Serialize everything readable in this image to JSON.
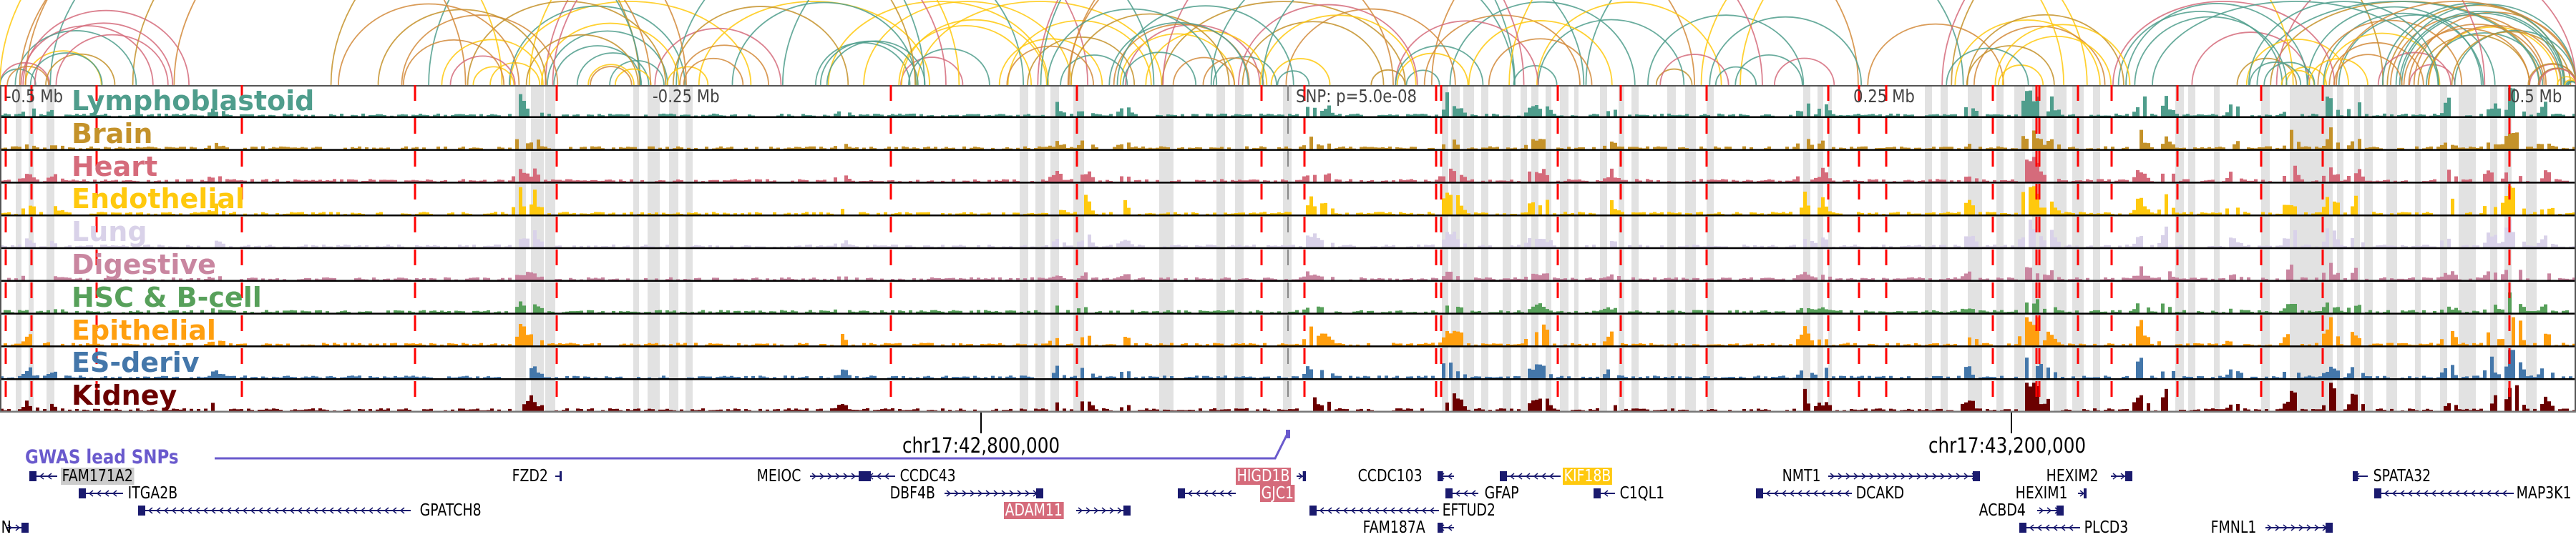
{
  "tracks": [
    {
      "label": "Lymphoblastoid",
      "color": "#4f9d8c"
    },
    {
      "label": "Brain",
      "color": "#c4922a"
    },
    {
      "label": "Heart",
      "color": "#d56b7b"
    },
    {
      "label": "Endothelial",
      "color": "#ffc90e"
    },
    {
      "label": "Lung",
      "color": "#d9d2e9"
    },
    {
      "label": "Digestive",
      "color": "#c986a0"
    },
    {
      "label": "HSC & B-cell",
      "color": "#57a05a"
    },
    {
      "label": "Epithelial",
      "color": "#ff9f0f"
    },
    {
      "label": "ES-deriv",
      "color": "#4477aa"
    },
    {
      "label": "Kidney",
      "color": "#6b0000"
    }
  ],
  "ruler": {
    "minus_half": "-0.5 Mb",
    "minus_quarter": "-0.25 Mb",
    "snp": "SNP: p=5.0e-08",
    "plus_quarter": "0.25 Mb",
    "plus_half": "0.5 Mb"
  },
  "axis": {
    "tick1": "chr17:42,800,000",
    "tick2": "chr17:43,200,000"
  },
  "gwas": {
    "label": "GWAS lead SNPs",
    "color": "#6a5acd"
  },
  "genes": [
    {
      "name": "FAM171A2",
      "highlight": "#cccccc",
      "text_color": "#000000"
    },
    {
      "name": "FZD2"
    },
    {
      "name": "MEIOC"
    },
    {
      "name": "CCDC43"
    },
    {
      "name": "HIGD1B",
      "highlight": "#d56b7b",
      "text_color": "#ffffff"
    },
    {
      "name": "CCDC103"
    },
    {
      "name": "KIF18B",
      "highlight": "#ffc90e",
      "text_color": "#ffffff"
    },
    {
      "name": "NMT1"
    },
    {
      "name": "HEXIM2"
    },
    {
      "name": "SPATA32"
    },
    {
      "name": "ITGA2B"
    },
    {
      "name": "DBF4B"
    },
    {
      "name": "GJC1",
      "highlight": "#d56b7b",
      "text_color": "#ffffff"
    },
    {
      "name": "GFAP"
    },
    {
      "name": "C1QL1"
    },
    {
      "name": "DCAKD"
    },
    {
      "name": "HEXIM1"
    },
    {
      "name": "MAP3K1"
    },
    {
      "name": "GPATCH8"
    },
    {
      "name": "ADAM11",
      "highlight": "#d56b7b",
      "text_color": "#ffffff"
    },
    {
      "name": "EFTUD2"
    },
    {
      "name": "ACBD4"
    },
    {
      "name": "N"
    },
    {
      "name": "FAM187A"
    },
    {
      "name": "PLCD3"
    },
    {
      "name": "FMNL1"
    }
  ]
}
